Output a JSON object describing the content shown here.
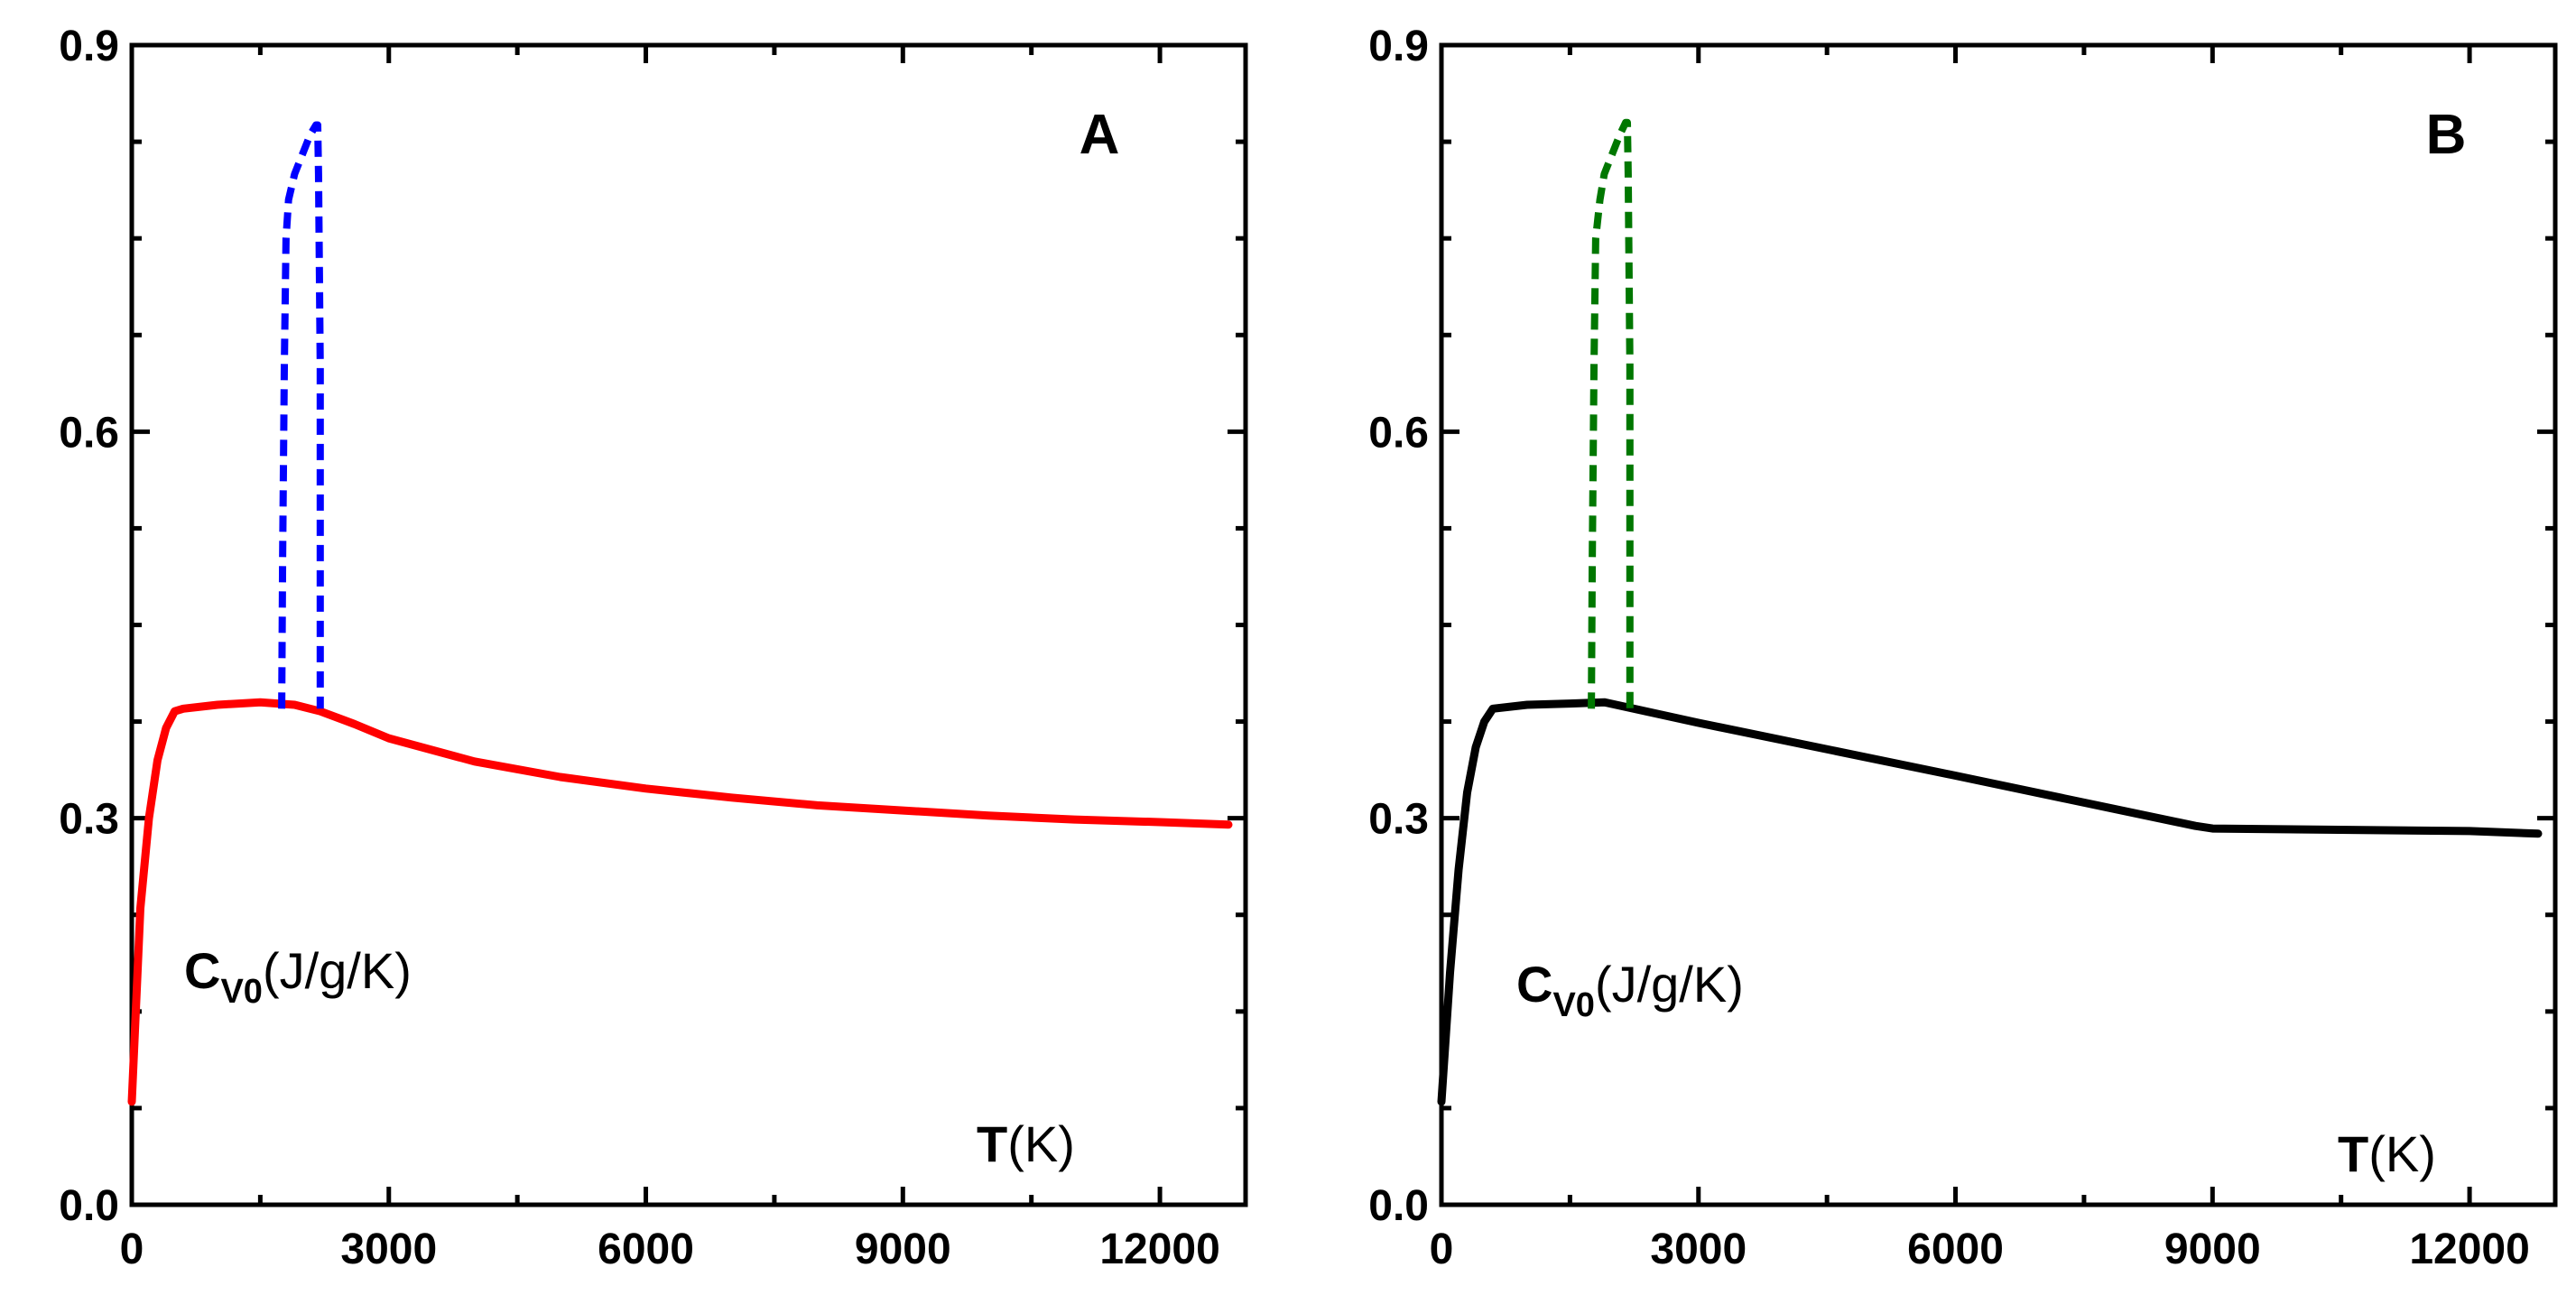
{
  "chart_data": [
    {
      "panel": "A",
      "type": "line",
      "panel_label": "A",
      "xlabel": {
        "var": "T",
        "unit": "(K)"
      },
      "ylabel": {
        "var": "C",
        "sub": "V0",
        "unit": "(J/g/K)"
      },
      "xlim": [
        0,
        13000
      ],
      "ylim": [
        0,
        0.9
      ],
      "xticks": [
        0,
        3000,
        6000,
        9000,
        12000
      ],
      "xtick_labels": [
        "0",
        "3000",
        "6000",
        "9000",
        "12000"
      ],
      "yticks": [
        0.0,
        0.3,
        0.6,
        0.9
      ],
      "ytick_labels": [
        "0.0",
        "0.3",
        "0.6",
        "0.9"
      ],
      "series": [
        {
          "name": "solid",
          "color": "#ff0000",
          "style": "solid",
          "x": [
            0,
            100,
            200,
            300,
            400,
            500,
            600,
            1000,
            1500,
            1900,
            2200,
            2600,
            3000,
            4000,
            5000,
            6000,
            7000,
            8000,
            9000,
            10000,
            11000,
            12000,
            12800
          ],
          "y": [
            0.08,
            0.23,
            0.3,
            0.345,
            0.37,
            0.383,
            0.385,
            0.388,
            0.39,
            0.388,
            0.383,
            0.373,
            0.362,
            0.344,
            0.332,
            0.323,
            0.316,
            0.31,
            0.306,
            0.302,
            0.299,
            0.297,
            0.295
          ]
        },
        {
          "name": "dashed",
          "color": "#0000ff",
          "style": "dashed",
          "x": [
            1750,
            1760,
            1780,
            1800,
            1830,
            1900,
            1990,
            2080,
            2150,
            2170,
            2180,
            2200,
            2200
          ],
          "y": [
            0.385,
            0.5,
            0.65,
            0.75,
            0.78,
            0.8,
            0.815,
            0.83,
            0.838,
            0.838,
            0.8,
            0.65,
            0.385
          ]
        }
      ]
    },
    {
      "panel": "B",
      "type": "line",
      "panel_label": "B",
      "xlabel": {
        "var": "T",
        "unit": "(K)"
      },
      "ylabel": {
        "var": "C",
        "sub": "V0",
        "unit": "(J/g/K)"
      },
      "xlim": [
        0,
        13000
      ],
      "ylim": [
        0,
        0.9
      ],
      "xticks": [
        0,
        3000,
        6000,
        9000,
        12000
      ],
      "xtick_labels": [
        "0",
        "3000",
        "6000",
        "9000",
        "12000"
      ],
      "yticks": [
        0.0,
        0.3,
        0.6,
        0.9
      ],
      "ytick_labels": [
        "0.0",
        "0.3",
        "0.6",
        "0.9"
      ],
      "series": [
        {
          "name": "solid",
          "color": "#000000",
          "style": "solid",
          "x": [
            0,
            100,
            200,
            300,
            400,
            500,
            600,
            1000,
            1500,
            1900,
            3000,
            6000,
            8800,
            9000,
            12000,
            12800
          ],
          "y": [
            0.08,
            0.18,
            0.26,
            0.32,
            0.355,
            0.375,
            0.385,
            0.388,
            0.389,
            0.39,
            0.374,
            0.333,
            0.294,
            0.292,
            0.29,
            0.288
          ]
        },
        {
          "name": "dashed",
          "color": "#007700",
          "style": "dashed",
          "x": [
            1750,
            1760,
            1780,
            1800,
            1850,
            1900,
            1990,
            2080,
            2150,
            2170,
            2180,
            2200,
            2200
          ],
          "y": [
            0.385,
            0.5,
            0.65,
            0.75,
            0.78,
            0.8,
            0.815,
            0.83,
            0.84,
            0.84,
            0.8,
            0.65,
            0.385
          ]
        }
      ]
    }
  ]
}
